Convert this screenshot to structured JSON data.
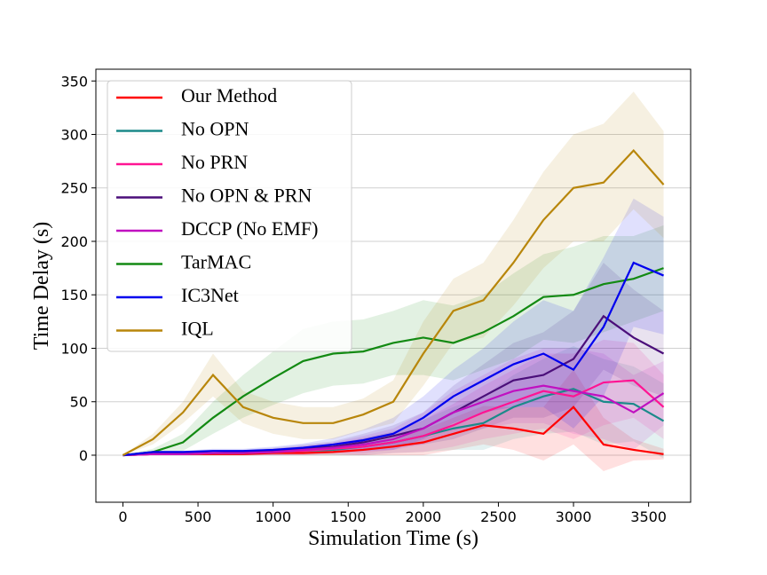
{
  "chart_data": {
    "type": "line",
    "xlabel": "Simulation Time (s)",
    "ylabel": "Time Delay (s)",
    "x": [
      0,
      200,
      400,
      600,
      800,
      1000,
      1200,
      1400,
      1600,
      1800,
      2000,
      2200,
      2400,
      2600,
      2800,
      3000,
      3200,
      3400,
      3600
    ],
    "xlim": [
      -180,
      3780
    ],
    "ylim": [
      -44,
      361
    ],
    "xticks": [
      0,
      500,
      1000,
      1500,
      2000,
      2500,
      3000,
      3500
    ],
    "yticks": [
      0,
      50,
      100,
      150,
      200,
      250,
      300,
      350
    ],
    "grid": true,
    "legend": "upper left",
    "series": [
      {
        "name": "Our Method",
        "color": "#ff0000",
        "values": [
          0,
          1,
          1,
          1,
          1,
          2,
          2,
          3,
          5,
          8,
          12,
          20,
          28,
          25,
          20,
          45,
          10,
          5,
          1
        ],
        "errors": [
          0,
          1,
          1,
          1,
          1,
          2,
          2,
          3,
          5,
          8,
          12,
          15,
          18,
          20,
          25,
          35,
          25,
          10,
          5
        ]
      },
      {
        "name": "No OPN",
        "color": "#1b8a8a",
        "values": [
          0,
          1,
          1,
          2,
          2,
          3,
          4,
          5,
          8,
          12,
          18,
          25,
          30,
          45,
          55,
          62,
          50,
          48,
          32
        ],
        "errors": [
          0,
          1,
          1,
          2,
          2,
          3,
          4,
          5,
          8,
          10,
          15,
          20,
          25,
          30,
          35,
          40,
          40,
          35,
          35
        ]
      },
      {
        "name": "No PRN",
        "color": "#ff1493",
        "values": [
          0,
          1,
          1,
          2,
          2,
          3,
          4,
          6,
          8,
          12,
          18,
          28,
          40,
          50,
          60,
          55,
          68,
          70,
          45
        ],
        "errors": [
          0,
          1,
          1,
          2,
          2,
          3,
          4,
          5,
          8,
          10,
          15,
          20,
          25,
          30,
          35,
          40,
          40,
          35,
          30
        ]
      },
      {
        "name": "No OPN & PRN",
        "color": "#4b0f7a",
        "values": [
          0,
          2,
          2,
          2,
          3,
          4,
          6,
          8,
          12,
          18,
          25,
          40,
          55,
          70,
          75,
          90,
          130,
          110,
          95
        ],
        "errors": [
          0,
          1,
          1,
          2,
          2,
          3,
          4,
          5,
          8,
          10,
          15,
          25,
          30,
          35,
          40,
          45,
          50,
          45,
          40
        ]
      },
      {
        "name": "DCCP (No EMF)",
        "color": "#c010c0",
        "values": [
          0,
          1,
          1,
          2,
          2,
          3,
          5,
          7,
          10,
          15,
          25,
          40,
          50,
          60,
          65,
          60,
          55,
          40,
          58
        ],
        "errors": [
          0,
          1,
          1,
          2,
          2,
          3,
          4,
          5,
          8,
          10,
          15,
          20,
          25,
          30,
          35,
          40,
          40,
          35,
          30
        ]
      },
      {
        "name": "TarMAC",
        "color": "#138a13",
        "values": [
          0,
          3,
          12,
          35,
          55,
          72,
          88,
          95,
          97,
          105,
          110,
          105,
          115,
          130,
          148,
          150,
          160,
          165,
          175
        ],
        "errors": [
          0,
          3,
          8,
          15,
          20,
          25,
          30,
          30,
          30,
          30,
          35,
          35,
          35,
          40,
          40,
          45,
          45,
          40,
          40
        ]
      },
      {
        "name": "IC3Net",
        "color": "#0000ee",
        "values": [
          0,
          3,
          3,
          4,
          4,
          5,
          7,
          10,
          14,
          20,
          35,
          55,
          70,
          85,
          95,
          80,
          120,
          180,
          168
        ],
        "errors": [
          0,
          1,
          1,
          2,
          2,
          3,
          4,
          6,
          10,
          15,
          20,
          25,
          30,
          40,
          50,
          55,
          65,
          60,
          55
        ]
      },
      {
        "name": "IQL",
        "color": "#b8860b",
        "values": [
          0,
          15,
          40,
          75,
          45,
          35,
          30,
          30,
          38,
          50,
          95,
          135,
          145,
          180,
          220,
          250,
          255,
          285,
          253
        ],
        "errors": [
          0,
          5,
          10,
          20,
          15,
          15,
          15,
          15,
          15,
          20,
          30,
          30,
          35,
          40,
          45,
          50,
          55,
          55,
          50
        ]
      }
    ]
  }
}
